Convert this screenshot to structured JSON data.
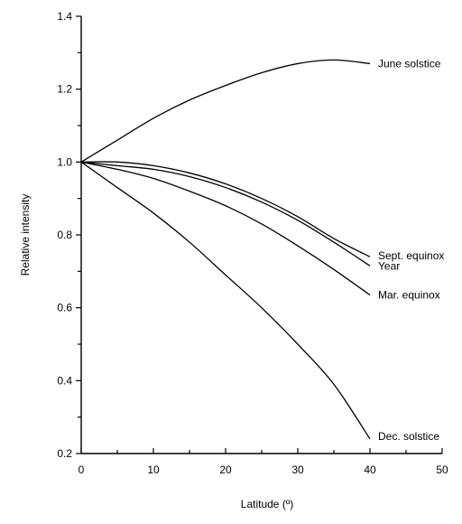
{
  "chart_data": {
    "type": "line",
    "title": "",
    "xlabel": "Latitude (º)",
    "ylabel": "Relative intensity",
    "xlim": [
      0,
      50
    ],
    "ylim": [
      0.2,
      1.4
    ],
    "x_ticks": [
      0,
      10,
      20,
      30,
      40,
      50
    ],
    "y_ticks": [
      0.2,
      0.4,
      0.6,
      0.8,
      1.0,
      1.2,
      1.4
    ],
    "x_tick_labels": [
      "0",
      "10",
      "20",
      "30",
      "40",
      "50"
    ],
    "y_tick_labels": [
      "0.2",
      "0.4",
      "0.6",
      "0.8",
      "1.0",
      "1.2",
      "1.4"
    ],
    "grid": false,
    "legend": "inline labels at right end of each curve",
    "series": [
      {
        "name": "June solstice",
        "x": [
          0,
          5,
          10,
          15,
          20,
          25,
          30,
          35,
          40
        ],
        "y": [
          1.0,
          1.06,
          1.12,
          1.17,
          1.21,
          1.245,
          1.27,
          1.28,
          1.27
        ]
      },
      {
        "name": "Sept. equinox",
        "x": [
          0,
          5,
          10,
          15,
          20,
          25,
          30,
          35,
          40
        ],
        "y": [
          1.0,
          1.0,
          0.99,
          0.97,
          0.94,
          0.9,
          0.85,
          0.79,
          0.74
        ]
      },
      {
        "name": "Year",
        "x": [
          0,
          5,
          10,
          15,
          20,
          25,
          30,
          35,
          40
        ],
        "y": [
          1.0,
          0.99,
          0.98,
          0.96,
          0.93,
          0.89,
          0.84,
          0.78,
          0.715
        ]
      },
      {
        "name": "Mar. equinox",
        "x": [
          0,
          5,
          10,
          15,
          20,
          25,
          30,
          35,
          40
        ],
        "y": [
          1.0,
          0.98,
          0.955,
          0.92,
          0.88,
          0.83,
          0.77,
          0.705,
          0.635
        ]
      },
      {
        "name": "Dec. solstice",
        "x": [
          0,
          5,
          10,
          15,
          20,
          25,
          30,
          35,
          40
        ],
        "y": [
          1.0,
          0.93,
          0.86,
          0.78,
          0.69,
          0.6,
          0.5,
          0.39,
          0.24
        ]
      }
    ]
  }
}
